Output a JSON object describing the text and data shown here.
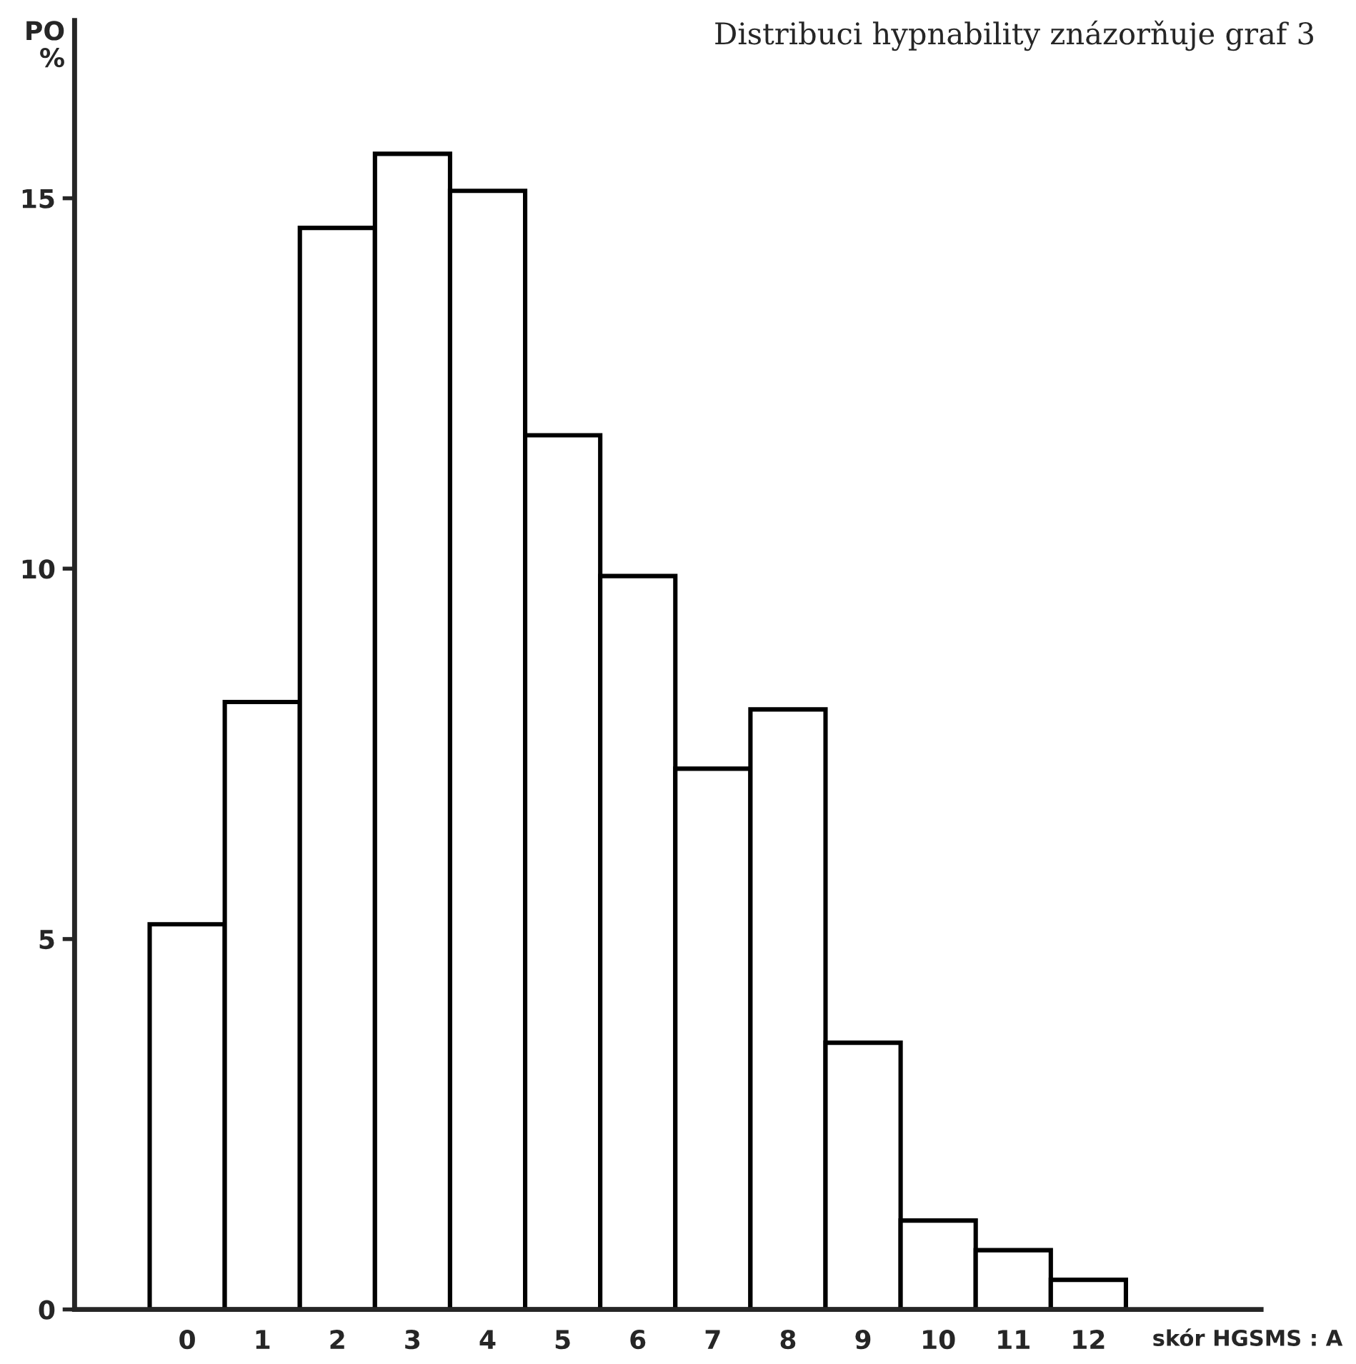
{
  "chart_data": {
    "type": "bar",
    "title": "Distribuci hypnability znázorňuje graf 3",
    "xlabel": "skór HGSMS : A",
    "ylabel": "PO\n%",
    "categories": [
      "0",
      "1",
      "2",
      "3",
      "4",
      "5",
      "6",
      "7",
      "8",
      "9",
      "10",
      "11",
      "12"
    ],
    "values": [
      5.2,
      8.2,
      14.6,
      15.6,
      15.1,
      11.8,
      9.9,
      7.3,
      8.1,
      3.6,
      1.2,
      0.8,
      0.4
    ],
    "color": "#ffffff",
    "ylim": [
      0,
      17.4
    ],
    "yticks": [
      0,
      5,
      10,
      15
    ],
    "grid": false,
    "legend": false
  }
}
